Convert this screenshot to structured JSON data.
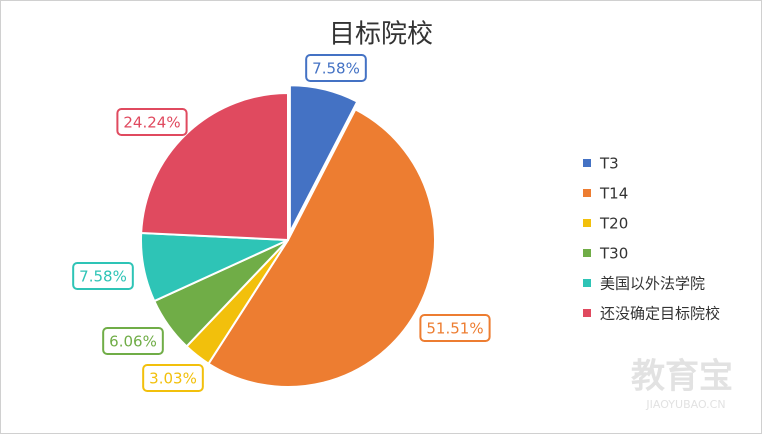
{
  "chart_data": {
    "type": "pie",
    "title": "目标院校",
    "categories": [
      "T3",
      "T14",
      "T20",
      "T30",
      "美国以外法学院",
      "还没确定目标院校"
    ],
    "values": [
      7.58,
      51.51,
      3.03,
      6.06,
      7.58,
      24.24
    ],
    "value_labels": [
      "7.58%",
      "51.51%",
      "3.03%",
      "6.06%",
      "7.58%",
      "24.24%"
    ],
    "colors": [
      "#4472c4",
      "#ed7d31",
      "#f2c00c",
      "#70ad47",
      "#2ec4b6",
      "#e04a5f"
    ],
    "exploded": [
      0
    ],
    "legend": "right"
  },
  "watermark": {
    "text": "教育宝",
    "url": "JIAOYUBAO.CN"
  }
}
